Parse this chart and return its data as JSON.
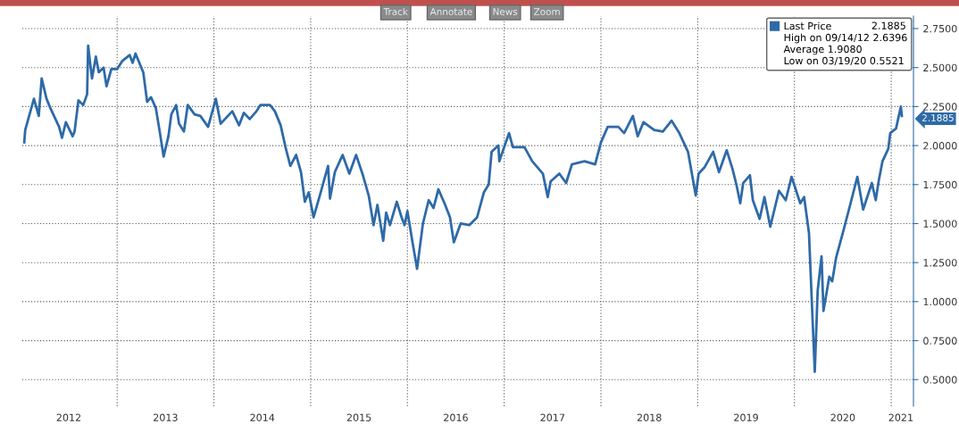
{
  "chart_data": {
    "type": "line",
    "x": [
      2012.04,
      2012.05,
      2012.14,
      2012.19,
      2012.22,
      2012.27,
      2012.31,
      2012.4,
      2012.43,
      2012.47,
      2012.54,
      2012.56,
      2012.6,
      2012.65,
      2012.69,
      2012.7,
      2012.74,
      2012.78,
      2012.81,
      2012.86,
      2012.89,
      2012.94,
      2013.0,
      2013.05,
      2013.13,
      2013.16,
      2013.19,
      2013.27,
      2013.31,
      2013.35,
      2013.4,
      2013.44,
      2013.48,
      2013.53,
      2013.56,
      2013.61,
      2013.64,
      2013.69,
      2013.73,
      2013.8,
      2013.86,
      2013.94,
      2014.02,
      2014.07,
      2014.19,
      2014.26,
      2014.31,
      2014.37,
      2014.44,
      2014.48,
      2014.58,
      2014.63,
      2014.69,
      2014.74,
      2014.79,
      2014.85,
      2014.9,
      2014.94,
      2014.98,
      2015.03,
      2015.09,
      2015.18,
      2015.2,
      2015.25,
      2015.33,
      2015.4,
      2015.47,
      2015.54,
      2015.6,
      2015.65,
      2015.69,
      2015.75,
      2015.78,
      2015.82,
      2015.89,
      2015.94,
      2015.97,
      2016.0,
      2016.05,
      2016.1,
      2016.16,
      2016.22,
      2016.27,
      2016.32,
      2016.39,
      2016.44,
      2016.48,
      2016.55,
      2016.64,
      2016.72,
      2016.79,
      2016.84,
      2016.87,
      2016.94,
      2016.95,
      2017.05,
      2017.09,
      2017.21,
      2017.29,
      2017.4,
      2017.45,
      2017.48,
      2017.57,
      2017.64,
      2017.7,
      2017.83,
      2017.94,
      2018.0,
      2018.07,
      2018.18,
      2018.24,
      2018.33,
      2018.38,
      2018.44,
      2018.55,
      2018.64,
      2018.73,
      2018.81,
      2018.9,
      2018.98,
      2019.01,
      2019.07,
      2019.16,
      2019.22,
      2019.3,
      2019.36,
      2019.4,
      2019.44,
      2019.47,
      2019.54,
      2019.57,
      2019.64,
      2019.69,
      2019.75,
      2019.84,
      2019.91,
      2019.97,
      2020.06,
      2020.1,
      2020.15,
      2020.21,
      2020.24,
      2020.28,
      2020.3,
      2020.36,
      2020.39,
      2020.43,
      2020.5,
      2020.58,
      2020.65,
      2020.71,
      2020.8,
      2020.84,
      2020.87,
      2020.91,
      2020.97,
      2020.99,
      2021.05,
      2021.1,
      2021.11
    ],
    "series": [
      {
        "name": "Last Price",
        "color": "#2e6aa8",
        "values": [
          2.02,
          2.1,
          2.3,
          2.19,
          2.43,
          2.3,
          2.24,
          2.12,
          2.05,
          2.15,
          2.06,
          2.09,
          2.29,
          2.26,
          2.33,
          2.64,
          2.43,
          2.57,
          2.47,
          2.5,
          2.38,
          2.49,
          2.49,
          2.54,
          2.58,
          2.53,
          2.59,
          2.47,
          2.28,
          2.31,
          2.24,
          2.09,
          1.93,
          2.06,
          2.2,
          2.26,
          2.14,
          2.09,
          2.26,
          2.2,
          2.19,
          2.12,
          2.3,
          2.14,
          2.22,
          2.13,
          2.21,
          2.17,
          2.22,
          2.26,
          2.26,
          2.22,
          2.13,
          1.99,
          1.87,
          1.94,
          1.83,
          1.64,
          1.7,
          1.54,
          1.67,
          1.87,
          1.66,
          1.83,
          1.94,
          1.82,
          1.94,
          1.81,
          1.68,
          1.49,
          1.62,
          1.39,
          1.57,
          1.49,
          1.64,
          1.54,
          1.49,
          1.58,
          1.39,
          1.21,
          1.5,
          1.65,
          1.6,
          1.72,
          1.62,
          1.54,
          1.38,
          1.5,
          1.49,
          1.54,
          1.7,
          1.75,
          1.96,
          2.0,
          1.9,
          2.08,
          1.99,
          1.99,
          1.9,
          1.82,
          1.67,
          1.77,
          1.82,
          1.76,
          1.88,
          1.9,
          1.88,
          2.02,
          2.12,
          2.12,
          2.08,
          2.19,
          2.06,
          2.15,
          2.1,
          2.09,
          2.16,
          2.08,
          1.96,
          1.68,
          1.82,
          1.86,
          1.96,
          1.83,
          1.97,
          1.85,
          1.75,
          1.63,
          1.76,
          1.81,
          1.65,
          1.53,
          1.67,
          1.48,
          1.71,
          1.65,
          1.8,
          1.63,
          1.67,
          1.44,
          0.55,
          1.07,
          1.29,
          0.94,
          1.16,
          1.13,
          1.28,
          1.44,
          1.63,
          1.8,
          1.59,
          1.76,
          1.65,
          1.77,
          1.9,
          1.98,
          2.08,
          2.11,
          2.25,
          2.19
        ]
      }
    ],
    "xlim": [
      2012.02,
      2021.23
    ],
    "xticks": [
      {
        "value": 2012.5,
        "label": "2012"
      },
      {
        "value": 2013,
        "label": null
      },
      {
        "value": 2013.5,
        "label": "2013"
      },
      {
        "value": 2014,
        "label": null
      },
      {
        "value": 2014.5,
        "label": "2014"
      },
      {
        "value": 2015,
        "label": null
      },
      {
        "value": 2015.5,
        "label": "2015"
      },
      {
        "value": 2016,
        "label": null
      },
      {
        "value": 2016.5,
        "label": "2016"
      },
      {
        "value": 2017,
        "label": null
      },
      {
        "value": 2017.5,
        "label": "2017"
      },
      {
        "value": 2018,
        "label": null
      },
      {
        "value": 2018.5,
        "label": "2018"
      },
      {
        "value": 2019,
        "label": null
      },
      {
        "value": 2019.5,
        "label": "2019"
      },
      {
        "value": 2020,
        "label": null
      },
      {
        "value": 2020.5,
        "label": "2020"
      },
      {
        "value": 2021,
        "label": null
      },
      {
        "value": 2021.1,
        "label": "2021"
      }
    ],
    "ylim": [
      0.33,
      2.83
    ],
    "yticks": [
      {
        "value": 0.5,
        "label": "0.5000"
      },
      {
        "value": 0.75,
        "label": "0.7500"
      },
      {
        "value": 1.0,
        "label": "1.0000"
      },
      {
        "value": 1.25,
        "label": "1.2500"
      },
      {
        "value": 1.5,
        "label": "1.5000"
      },
      {
        "value": 1.75,
        "label": "1.7500"
      },
      {
        "value": 2.0,
        "label": "2.0000"
      },
      {
        "value": 2.25,
        "label": "2.2500"
      },
      {
        "value": 2.5,
        "label": "2.5000"
      },
      {
        "value": 2.75,
        "label": "2.7500"
      }
    ],
    "grid": true,
    "legend": "top right",
    "annotations": [
      "2.1885",
      "High on 09/14/12 2.6396",
      "Average 1.9080",
      "Low on 03/19/20 0.5521",
      {
        "text": "2.1885",
        "x": 2021.11,
        "y": 2.1885
      },
      "Track",
      "Annotate",
      "News",
      "Zoom"
    ]
  }
}
